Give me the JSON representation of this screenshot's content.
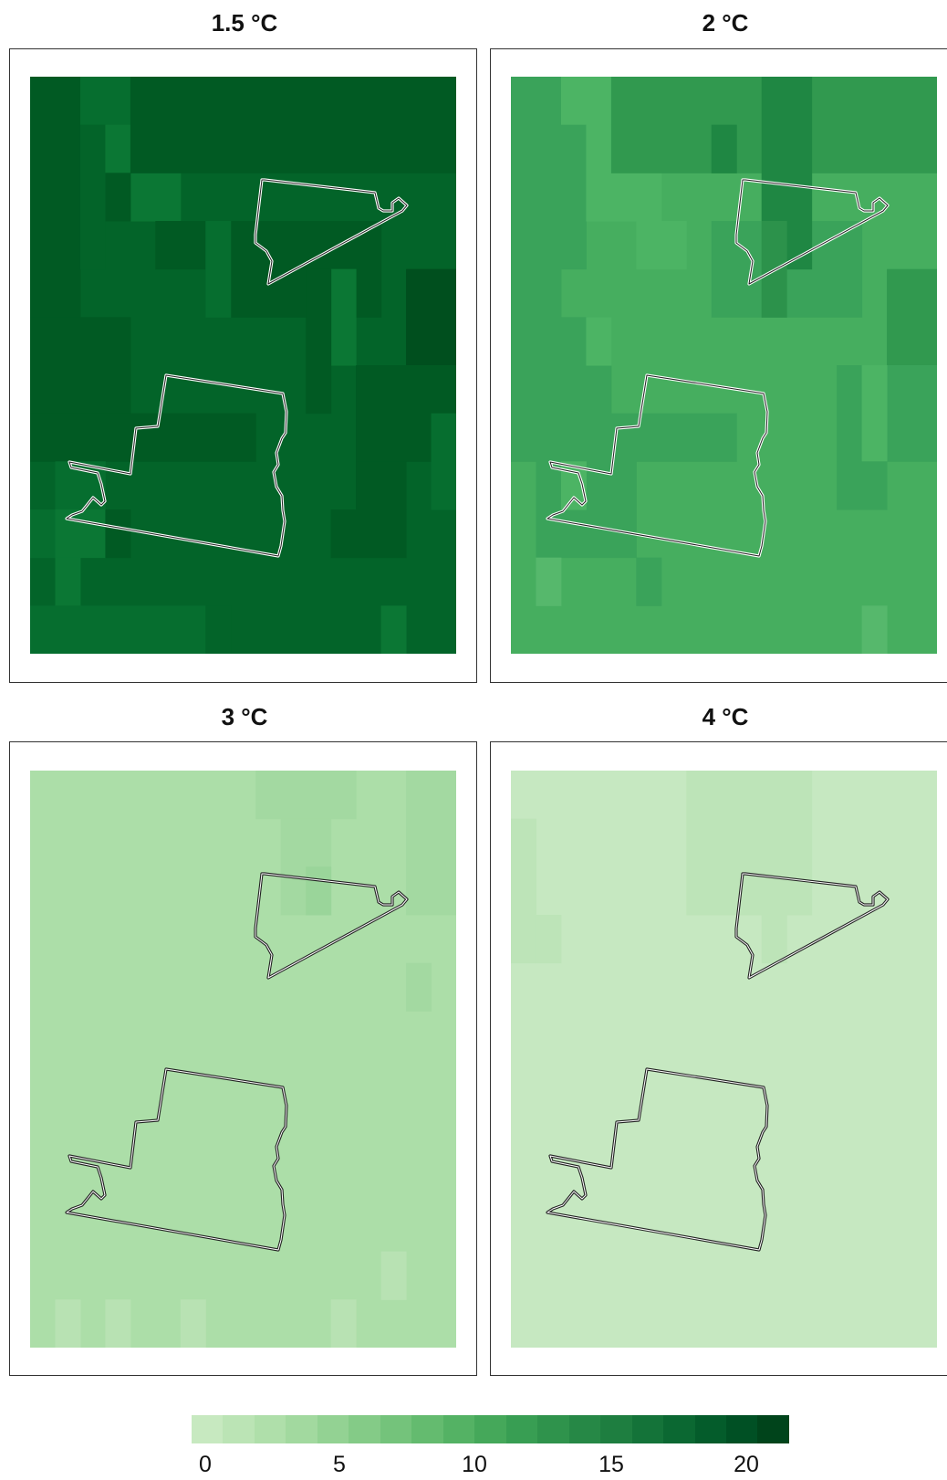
{
  "panels": [
    {
      "title": "1.5 °C",
      "fill": "#036429",
      "cells": [
        {
          "col": 0,
          "row": 0,
          "w": 2,
          "h": 5,
          "fill": "#015a23"
        },
        {
          "col": 2,
          "row": 0,
          "w": 2,
          "h": 1,
          "fill": "#066e2f"
        },
        {
          "col": 2,
          "row": 1,
          "w": 1,
          "h": 3,
          "fill": "#036429"
        },
        {
          "col": 3,
          "row": 1,
          "w": 3,
          "h": 2,
          "fill": "#0b7734"
        },
        {
          "col": 3,
          "row": 2,
          "w": 1,
          "h": 1,
          "fill": "#015a23"
        },
        {
          "col": 4,
          "row": 0,
          "w": 13,
          "h": 2,
          "fill": "#015a23"
        },
        {
          "col": 8,
          "row": 3,
          "w": 6,
          "h": 2,
          "fill": "#015a23"
        },
        {
          "col": 5,
          "row": 3,
          "w": 2,
          "h": 1,
          "fill": "#015a23"
        },
        {
          "col": 7,
          "row": 3,
          "w": 1,
          "h": 2,
          "fill": "#066e2f"
        },
        {
          "col": 12,
          "row": 4,
          "w": 1,
          "h": 2,
          "fill": "#0b7734"
        },
        {
          "col": 11,
          "row": 4,
          "w": 1,
          "h": 3,
          "fill": "#015a23"
        },
        {
          "col": 15,
          "row": 4,
          "w": 2,
          "h": 2,
          "fill": "#004f1e"
        },
        {
          "col": 0,
          "row": 5,
          "w": 4,
          "h": 2,
          "fill": "#015a23"
        },
        {
          "col": 0,
          "row": 7,
          "w": 9,
          "h": 1,
          "fill": "#015a23"
        },
        {
          "col": 13,
          "row": 6,
          "w": 4,
          "h": 2,
          "fill": "#015a23"
        },
        {
          "col": 13,
          "row": 8,
          "w": 2,
          "h": 1,
          "fill": "#015a23"
        },
        {
          "col": 16,
          "row": 7,
          "w": 1,
          "h": 2,
          "fill": "#066e2f"
        },
        {
          "col": 1,
          "row": 8,
          "w": 2,
          "h": 1,
          "fill": "#066e2f"
        },
        {
          "col": 0,
          "row": 9,
          "w": 1,
          "h": 1,
          "fill": "#066e2f"
        },
        {
          "col": 1,
          "row": 9,
          "w": 2,
          "h": 1,
          "fill": "#0b7734"
        },
        {
          "col": 3,
          "row": 9,
          "w": 1,
          "h": 1,
          "fill": "#015a23"
        },
        {
          "col": 12,
          "row": 9,
          "w": 3,
          "h": 1,
          "fill": "#015a23"
        },
        {
          "col": 1,
          "row": 10,
          "w": 1,
          "h": 1,
          "fill": "#0b7734"
        },
        {
          "col": 0,
          "row": 11,
          "w": 7,
          "h": 1,
          "fill": "#066e2f"
        },
        {
          "col": 7,
          "row": 11,
          "w": 1,
          "h": 1,
          "fill": "#036429"
        },
        {
          "col": 14,
          "row": 11,
          "w": 1,
          "h": 2,
          "fill": "#0b7734"
        },
        {
          "col": 1,
          "row": 12,
          "w": 7,
          "h": 1,
          "fill": "#137f3a"
        },
        {
          "col": 12,
          "row": 12,
          "w": 1,
          "h": 1,
          "fill": "#137f3a"
        }
      ]
    },
    {
      "title": "2 °C",
      "fill": "#46ae5f",
      "cells": [
        {
          "col": 0,
          "row": 0,
          "w": 2,
          "h": 5,
          "fill": "#3aa35a"
        },
        {
          "col": 2,
          "row": 0,
          "w": 2,
          "h": 1,
          "fill": "#4cb464"
        },
        {
          "col": 2,
          "row": 1,
          "w": 1,
          "h": 3,
          "fill": "#3aa35a"
        },
        {
          "col": 3,
          "row": 1,
          "w": 3,
          "h": 2,
          "fill": "#4cb464"
        },
        {
          "col": 4,
          "row": 0,
          "w": 13,
          "h": 2,
          "fill": "#31994f"
        },
        {
          "col": 10,
          "row": 0,
          "w": 2,
          "h": 3,
          "fill": "#1f8743"
        },
        {
          "col": 8,
          "row": 1,
          "w": 1,
          "h": 1,
          "fill": "#1f8743"
        },
        {
          "col": 8,
          "row": 3,
          "w": 6,
          "h": 2,
          "fill": "#3aa35a"
        },
        {
          "col": 11,
          "row": 3,
          "w": 1,
          "h": 1,
          "fill": "#1f8743"
        },
        {
          "col": 10,
          "row": 3,
          "w": 1,
          "h": 2,
          "fill": "#2c924b"
        },
        {
          "col": 5,
          "row": 3,
          "w": 2,
          "h": 1,
          "fill": "#4cb464"
        },
        {
          "col": 15,
          "row": 4,
          "w": 2,
          "h": 2,
          "fill": "#31994f"
        },
        {
          "col": 0,
          "row": 5,
          "w": 4,
          "h": 2,
          "fill": "#3aa35a"
        },
        {
          "col": 3,
          "row": 5,
          "w": 1,
          "h": 1,
          "fill": "#4cb464"
        },
        {
          "col": 0,
          "row": 7,
          "w": 9,
          "h": 1,
          "fill": "#3aa35a"
        },
        {
          "col": 13,
          "row": 6,
          "w": 4,
          "h": 2,
          "fill": "#3aa35a"
        },
        {
          "col": 14,
          "row": 6,
          "w": 1,
          "h": 2,
          "fill": "#4cb464"
        },
        {
          "col": 1,
          "row": 8,
          "w": 4,
          "h": 2,
          "fill": "#3aa35a"
        },
        {
          "col": 2,
          "row": 8,
          "w": 1,
          "h": 1,
          "fill": "#4cb464"
        },
        {
          "col": 13,
          "row": 8,
          "w": 2,
          "h": 1,
          "fill": "#3aa35a"
        },
        {
          "col": 1,
          "row": 10,
          "w": 1,
          "h": 1,
          "fill": "#56b86c"
        },
        {
          "col": 5,
          "row": 10,
          "w": 1,
          "h": 1,
          "fill": "#3aa35a"
        },
        {
          "col": 14,
          "row": 11,
          "w": 1,
          "h": 1,
          "fill": "#56b86c"
        },
        {
          "col": 1,
          "row": 12,
          "w": 7,
          "h": 1,
          "fill": "#5bba6f"
        },
        {
          "col": 12,
          "row": 12,
          "w": 1,
          "h": 1,
          "fill": "#6ac17a"
        }
      ]
    },
    {
      "title": "3 °C",
      "fill": "#acdea8",
      "cells": [
        {
          "col": 9,
          "row": 0,
          "w": 4,
          "h": 1,
          "fill": "#a3d9a1"
        },
        {
          "col": 15,
          "row": 0,
          "w": 2,
          "h": 3,
          "fill": "#a3d9a1"
        },
        {
          "col": 10,
          "row": 1,
          "w": 2,
          "h": 2,
          "fill": "#a3d9a1"
        },
        {
          "col": 11,
          "row": 2,
          "w": 1,
          "h": 1,
          "fill": "#9ad59a"
        },
        {
          "col": 15,
          "row": 4,
          "w": 1,
          "h": 1,
          "fill": "#a3d9a1"
        },
        {
          "col": 14,
          "row": 10,
          "w": 1,
          "h": 1,
          "fill": "#b8e2b3"
        },
        {
          "col": 1,
          "row": 11,
          "w": 1,
          "h": 1,
          "fill": "#b8e2b3"
        },
        {
          "col": 3,
          "row": 11,
          "w": 1,
          "h": 1,
          "fill": "#b8e2b3"
        },
        {
          "col": 6,
          "row": 11,
          "w": 1,
          "h": 1,
          "fill": "#b8e2b3"
        },
        {
          "col": 12,
          "row": 11,
          "w": 1,
          "h": 1,
          "fill": "#b8e2b3"
        }
      ]
    },
    {
      "title": "4 °C",
      "fill": "#c6e8c1",
      "cells": [
        {
          "col": 7,
          "row": 0,
          "w": 5,
          "h": 3,
          "fill": "#bde4b8"
        },
        {
          "col": 0,
          "row": 1,
          "w": 1,
          "h": 3,
          "fill": "#bde4b8"
        },
        {
          "col": 1,
          "row": 3,
          "w": 1,
          "h": 1,
          "fill": "#bde4b8"
        },
        {
          "col": 10,
          "row": 3,
          "w": 1,
          "h": 1,
          "fill": "#bde4b8"
        }
      ]
    }
  ],
  "legend": {
    "colors": [
      "#c7e9c0",
      "#bbe4b5",
      "#afdfaa",
      "#a2d99f",
      "#93d293",
      "#84cb87",
      "#74c37b",
      "#64bb6f",
      "#54b264",
      "#45a85a",
      "#389e53",
      "#2f934c",
      "#268846",
      "#1e7e40",
      "#147339",
      "#0b6832",
      "#045c2b",
      "#005024",
      "#00441b"
    ],
    "ticks": [
      "0",
      "5",
      "10",
      "15",
      "20"
    ]
  }
}
